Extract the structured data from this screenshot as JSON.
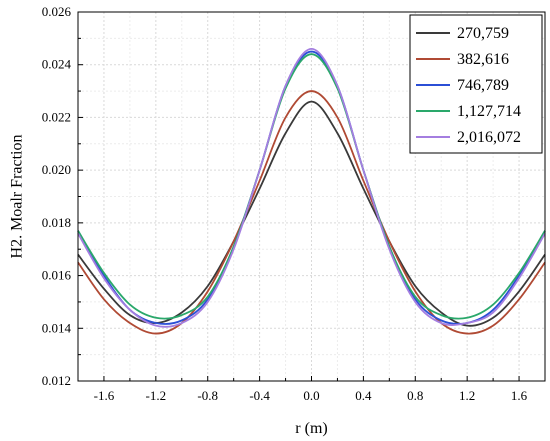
{
  "chart_data": {
    "type": "line",
    "xlabel": "r (m)",
    "ylabel": "H2. Moalr Fraction",
    "xlim": [
      -1.8,
      1.8
    ],
    "ylim": [
      0.012,
      0.026
    ],
    "x_ticks": [
      -1.6,
      -1.2,
      -0.8,
      -0.4,
      0.0,
      0.4,
      0.8,
      1.2,
      1.6
    ],
    "x_tick_labels": [
      "-1.6",
      "-1.2",
      "-0.8",
      "-0.4",
      "0.0",
      "0.4",
      "0.8",
      "1.2",
      "1.6"
    ],
    "y_ticks": [
      0.012,
      0.014,
      0.016,
      0.018,
      0.02,
      0.022,
      0.024,
      0.026
    ],
    "y_tick_labels": [
      "0.012",
      "0.014",
      "0.016",
      "0.018",
      "0.020",
      "0.022",
      "0.024",
      "0.026"
    ],
    "grid": true,
    "legend_position": "top-right",
    "x": [
      -1.8,
      -1.6,
      -1.4,
      -1.2,
      -1.0,
      -0.8,
      -0.6,
      -0.4,
      -0.2,
      0.0,
      0.2,
      0.4,
      0.6,
      0.8,
      1.0,
      1.2,
      1.4,
      1.6,
      1.8
    ],
    "series": [
      {
        "name": "270,759",
        "color": "#3a3a3a",
        "values": [
          0.0168,
          0.0155,
          0.0145,
          0.0142,
          0.0146,
          0.0156,
          0.0173,
          0.0193,
          0.0214,
          0.0226,
          0.0214,
          0.0193,
          0.0173,
          0.0156,
          0.0146,
          0.0141,
          0.0144,
          0.0154,
          0.0168
        ]
      },
      {
        "name": "382,616",
        "color": "#b04a34",
        "values": [
          0.0165,
          0.0151,
          0.0142,
          0.0138,
          0.0142,
          0.0154,
          0.0173,
          0.0196,
          0.022,
          0.023,
          0.022,
          0.0196,
          0.0173,
          0.0154,
          0.0142,
          0.0138,
          0.0141,
          0.0151,
          0.0165
        ]
      },
      {
        "name": "746,789",
        "color": "#2b4fd6",
        "values": [
          0.0177,
          0.016,
          0.0147,
          0.0142,
          0.0143,
          0.0151,
          0.0171,
          0.02,
          0.0232,
          0.0245,
          0.0232,
          0.02,
          0.0171,
          0.0151,
          0.0143,
          0.0142,
          0.0147,
          0.016,
          0.0177
        ]
      },
      {
        "name": "1,127,714",
        "color": "#2aa86b",
        "values": [
          0.0177,
          0.0161,
          0.0149,
          0.0144,
          0.0145,
          0.0152,
          0.0171,
          0.02,
          0.0231,
          0.0244,
          0.0231,
          0.02,
          0.0171,
          0.0152,
          0.0145,
          0.0144,
          0.0149,
          0.0161,
          0.0177
        ]
      },
      {
        "name": "2,016,072",
        "color": "#a47ee0",
        "values": [
          0.0176,
          0.0159,
          0.0147,
          0.0141,
          0.0142,
          0.015,
          0.017,
          0.02,
          0.0232,
          0.0246,
          0.0232,
          0.02,
          0.017,
          0.015,
          0.0142,
          0.0142,
          0.0146,
          0.0159,
          0.0176
        ]
      }
    ]
  }
}
